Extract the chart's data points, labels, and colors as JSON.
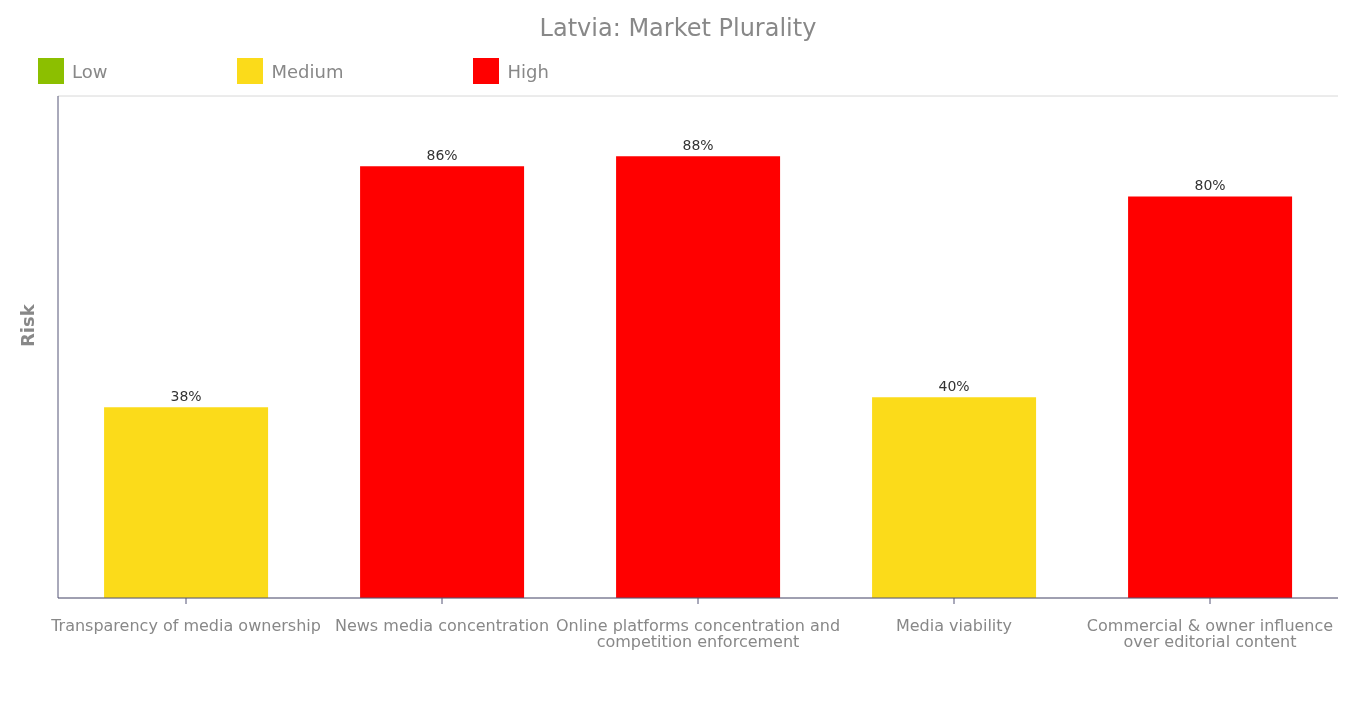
{
  "chart_data": {
    "type": "bar",
    "title": "Latvia: Market Plurality",
    "ylabel": "Risk",
    "categories": [
      "Transparency of media ownership",
      "News media concentration",
      "Online platforms concentration and competition enforcement",
      "Media viability",
      "Commercial & owner influence over editorial content"
    ],
    "stacked": true,
    "series": [
      {
        "name": "Low",
        "color": "#8cbf00",
        "values": [
          null,
          null,
          null,
          null,
          null
        ],
        "value_labels": [
          null,
          null,
          null,
          null,
          null
        ]
      },
      {
        "name": "Medium",
        "color": "#fbdb1a",
        "values": [
          38,
          null,
          null,
          40,
          null
        ],
        "value_labels": [
          "38%",
          null,
          null,
          "40%",
          null
        ]
      },
      {
        "name": "High",
        "color": "#ff0000",
        "values": [
          null,
          86,
          88,
          null,
          80
        ],
        "value_labels": [
          null,
          "86%",
          "88%",
          null,
          "80%"
        ]
      }
    ],
    "ylim": [
      0,
      100
    ],
    "tick_labels": "x",
    "grid": "y",
    "legend": "top left"
  }
}
